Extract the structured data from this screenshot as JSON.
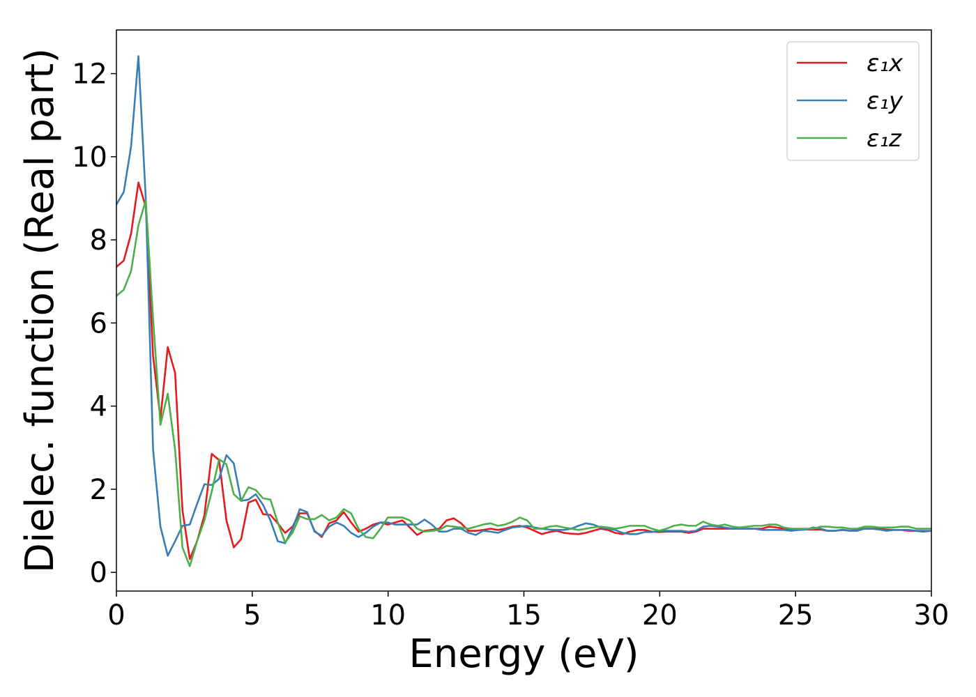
{
  "chart_data": {
    "type": "line",
    "xlabel": "Energy (eV)",
    "ylabel": "Dielec. function (Real part)",
    "xlim": [
      0,
      30
    ],
    "ylim": [
      -0.45,
      13.05
    ],
    "xticks": [
      0,
      5,
      10,
      15,
      20,
      25,
      30
    ],
    "yticks": [
      0,
      2,
      4,
      6,
      8,
      10,
      12
    ],
    "grid": false,
    "legend_position": "top-right",
    "x": [
      0,
      0.27,
      0.54,
      0.81,
      1.08,
      1.35,
      1.62,
      1.89,
      2.16,
      2.43,
      2.7,
      2.97,
      3.24,
      3.51,
      3.78,
      4.05,
      4.32,
      4.59,
      4.86,
      5.13,
      5.4,
      5.67,
      5.94,
      6.21,
      6.48,
      6.75,
      7.02,
      7.29,
      7.56,
      7.83,
      8.1,
      8.37,
      8.64,
      8.91,
      9.18,
      9.45,
      9.72,
      9.99,
      10.26,
      10.53,
      10.8,
      11.07,
      11.34,
      11.61,
      11.88,
      12.15,
      12.42,
      12.69,
      12.96,
      13.23,
      13.5,
      13.77,
      14.04,
      14.31,
      14.58,
      14.85,
      15.12,
      15.39,
      15.66,
      15.93,
      16.2,
      16.47,
      16.74,
      17.01,
      17.28,
      17.55,
      17.82,
      18.09,
      18.36,
      18.63,
      18.9,
      19.17,
      19.44,
      19.71,
      19.98,
      20.25,
      20.52,
      20.79,
      21.06,
      21.33,
      21.6,
      21.87,
      22.14,
      22.41,
      22.68,
      22.95,
      23.22,
      23.49,
      23.76,
      24.03,
      24.3,
      24.57,
      24.84,
      25.11,
      25.38,
      25.65,
      25.92,
      26.19,
      26.46,
      26.73,
      27.0,
      27.27,
      27.54,
      27.81,
      28.08,
      28.35,
      28.62,
      28.89,
      29.16,
      29.43,
      29.7,
      30.0
    ],
    "series": [
      {
        "name": "ε₁x",
        "color": "#e41a1c",
        "values": [
          7.35,
          7.5,
          8.15,
          9.38,
          8.8,
          5.2,
          3.7,
          5.42,
          4.8,
          1.5,
          0.32,
          0.75,
          1.38,
          2.85,
          2.7,
          1.25,
          0.6,
          0.8,
          1.68,
          1.75,
          1.4,
          1.38,
          1.18,
          0.95,
          1.1,
          1.42,
          1.42,
          1.0,
          0.85,
          1.18,
          1.25,
          1.45,
          1.2,
          0.98,
          1.05,
          1.15,
          1.2,
          1.15,
          1.2,
          1.25,
          1.08,
          0.9,
          1.0,
          1.02,
          1.05,
          1.25,
          1.3,
          1.18,
          1.0,
          1.0,
          1.02,
          1.05,
          1.02,
          1.05,
          1.1,
          1.12,
          1.08,
          1.0,
          0.92,
          0.97,
          1.0,
          0.95,
          0.93,
          0.92,
          0.95,
          1.0,
          1.05,
          1.02,
          0.95,
          0.92,
          0.98,
          1.02,
          1.02,
          0.98,
          0.97,
          0.98,
          0.98,
          0.98,
          0.95,
          0.98,
          1.05,
          1.05,
          1.05,
          1.05,
          1.05,
          1.05,
          1.05,
          1.05,
          1.05,
          1.1,
          1.08,
          1.05,
          1.02,
          1.02,
          1.03,
          1.03,
          1.03,
          1.0,
          1.0,
          1.02,
          1.0,
          1.02,
          1.05,
          1.05,
          1.05,
          1.03,
          1.02,
          1.02,
          1.0,
          1.0,
          0.98,
          1.0
        ]
      },
      {
        "name": "ε₁y",
        "color": "#377eb8",
        "values": [
          8.85,
          9.15,
          10.25,
          12.42,
          9.0,
          2.95,
          1.1,
          0.4,
          0.75,
          1.12,
          1.15,
          1.65,
          2.12,
          2.1,
          2.25,
          2.82,
          2.62,
          1.72,
          1.75,
          1.88,
          1.62,
          1.25,
          0.75,
          0.7,
          1.05,
          1.52,
          1.45,
          0.98,
          0.88,
          1.1,
          1.2,
          1.12,
          0.95,
          0.85,
          0.95,
          1.1,
          1.2,
          1.2,
          1.15,
          1.15,
          1.15,
          1.15,
          1.27,
          1.15,
          0.98,
          0.98,
          1.05,
          1.05,
          0.95,
          0.9,
          1.0,
          0.98,
          0.95,
          1.02,
          1.08,
          1.1,
          1.12,
          1.08,
          1.05,
          1.03,
          1.02,
          1.02,
          1.05,
          1.12,
          1.18,
          1.15,
          1.08,
          1.05,
          1.02,
          0.95,
          0.92,
          0.92,
          0.97,
          0.97,
          1.0,
          1.0,
          1.0,
          1.0,
          0.98,
          1.0,
          1.1,
          1.12,
          1.1,
          1.08,
          1.05,
          1.05,
          1.05,
          1.05,
          1.02,
          1.02,
          1.02,
          1.02,
          1.0,
          1.02,
          1.03,
          1.08,
          1.05,
          1.0,
          1.0,
          1.03,
          1.0,
          1.0,
          1.05,
          1.05,
          1.03,
          1.0,
          1.02,
          1.02,
          1.02,
          1.0,
          1.0,
          1.0
        ]
      },
      {
        "name": "ε₁z",
        "color": "#4daf4a",
        "values": [
          6.65,
          6.8,
          7.25,
          8.35,
          8.95,
          6.1,
          3.55,
          4.3,
          2.95,
          0.6,
          0.15,
          0.75,
          1.25,
          1.95,
          2.72,
          2.6,
          1.88,
          1.72,
          2.05,
          1.98,
          1.78,
          1.75,
          1.2,
          0.72,
          0.95,
          1.35,
          1.28,
          1.28,
          1.38,
          1.25,
          1.32,
          1.52,
          1.42,
          1.05,
          0.85,
          0.82,
          1.05,
          1.32,
          1.32,
          1.32,
          1.25,
          1.05,
          0.98,
          1.0,
          1.02,
          1.12,
          1.1,
          1.08,
          1.05,
          1.1,
          1.15,
          1.18,
          1.12,
          1.15,
          1.22,
          1.32,
          1.25,
          1.05,
          1.05,
          1.1,
          1.12,
          1.08,
          1.05,
          1.02,
          1.05,
          1.08,
          1.1,
          1.08,
          1.05,
          1.08,
          1.12,
          1.12,
          1.12,
          1.05,
          1.0,
          1.05,
          1.12,
          1.15,
          1.12,
          1.12,
          1.22,
          1.15,
          1.12,
          1.15,
          1.1,
          1.08,
          1.1,
          1.12,
          1.12,
          1.15,
          1.15,
          1.08,
          1.05,
          1.05,
          1.05,
          1.05,
          1.1,
          1.1,
          1.08,
          1.08,
          1.05,
          1.05,
          1.1,
          1.1,
          1.08,
          1.08,
          1.08,
          1.1,
          1.1,
          1.05,
          1.05,
          1.05
        ]
      }
    ]
  }
}
